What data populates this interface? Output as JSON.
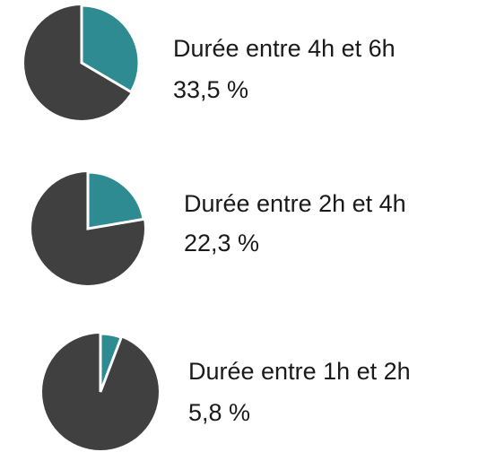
{
  "chart_data": [
    {
      "type": "pie",
      "title": "Durée entre 4h et 6h",
      "values": [
        33.5
      ],
      "value_labels": [
        "33,5 %"
      ],
      "color": "#2e8b92",
      "rest_color": "#404040"
    },
    {
      "type": "pie",
      "title": "Durée entre 2h et 4h",
      "values": [
        22.3
      ],
      "value_labels": [
        "22,3 %"
      ],
      "color": "#2e8b92",
      "rest_color": "#404040"
    },
    {
      "type": "pie",
      "title": "Durée entre 1h et 2h",
      "values": [
        5.8
      ],
      "value_labels": [
        "5,8 %"
      ],
      "color": "#2e8b92",
      "rest_color": "#404040"
    }
  ]
}
